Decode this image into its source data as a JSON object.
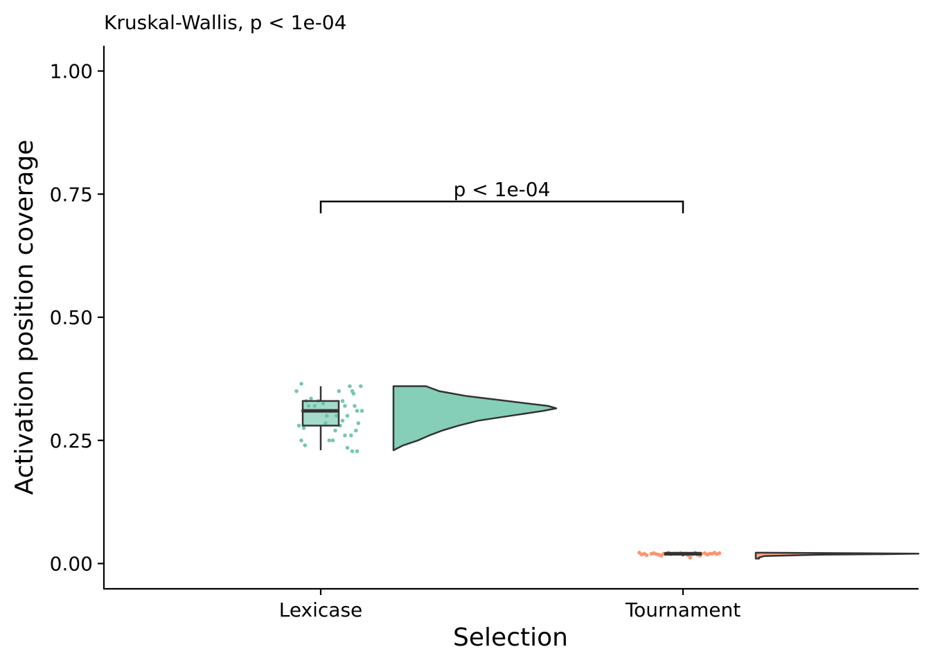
{
  "chart_data": {
    "type": "raincloud",
    "subtitle": "Kruskal-Wallis, p < 1e-04",
    "xlabel": "Selection",
    "ylabel": "Activation position coverage",
    "categories": [
      "Lexicase",
      "Tournament"
    ],
    "ylim": [
      -0.05,
      1.05
    ],
    "yticks": [
      0.0,
      0.25,
      0.5,
      0.75,
      1.0
    ],
    "ytick_labels": [
      "0.00",
      "0.25",
      "0.50",
      "0.75",
      "1.00"
    ],
    "grid": false,
    "legend": "none",
    "colors": {
      "Lexicase": "#66c2a5",
      "Tournament": "#fc8d62",
      "box_line": "#333333"
    },
    "series": [
      {
        "category": "Lexicase",
        "box": {
          "min": 0.23,
          "q1": 0.28,
          "median": 0.31,
          "q3": 0.33,
          "max": 0.36
        },
        "violin": {
          "y": [
            0.23,
            0.24,
            0.25,
            0.26,
            0.27,
            0.28,
            0.29,
            0.3,
            0.31,
            0.315,
            0.32,
            0.33,
            0.34,
            0.35,
            0.36
          ],
          "density": [
            0.0,
            0.06,
            0.15,
            0.22,
            0.3,
            0.4,
            0.52,
            0.72,
            0.92,
            1.0,
            0.95,
            0.7,
            0.45,
            0.28,
            0.2
          ]
        },
        "points": [
          {
            "x": -0.2,
            "y": 0.35
          },
          {
            "x": -0.16,
            "y": 0.365
          },
          {
            "x": -0.12,
            "y": 0.33
          },
          {
            "x": -0.08,
            "y": 0.335
          },
          {
            "x": -0.15,
            "y": 0.31
          },
          {
            "x": -0.18,
            "y": 0.28
          },
          {
            "x": -0.14,
            "y": 0.275
          },
          {
            "x": -0.16,
            "y": 0.25
          },
          {
            "x": -0.13,
            "y": 0.24
          },
          {
            "x": -0.1,
            "y": 0.32
          },
          {
            "x": -0.05,
            "y": 0.32
          },
          {
            "x": -0.02,
            "y": 0.33
          },
          {
            "x": 0.02,
            "y": 0.325
          },
          {
            "x": 0.05,
            "y": 0.3
          },
          {
            "x": 0.08,
            "y": 0.31
          },
          {
            "x": 0.1,
            "y": 0.25
          },
          {
            "x": 0.12,
            "y": 0.27
          },
          {
            "x": 0.15,
            "y": 0.35
          },
          {
            "x": 0.18,
            "y": 0.33
          },
          {
            "x": 0.2,
            "y": 0.32
          },
          {
            "x": 0.22,
            "y": 0.3
          },
          {
            "x": 0.24,
            "y": 0.36
          },
          {
            "x": 0.26,
            "y": 0.35
          },
          {
            "x": 0.28,
            "y": 0.32
          },
          {
            "x": 0.3,
            "y": 0.31
          },
          {
            "x": 0.25,
            "y": 0.26
          },
          {
            "x": 0.2,
            "y": 0.26
          },
          {
            "x": 0.22,
            "y": 0.235
          },
          {
            "x": 0.26,
            "y": 0.228
          },
          {
            "x": 0.3,
            "y": 0.228
          },
          {
            "x": 0.33,
            "y": 0.36
          },
          {
            "x": 0.34,
            "y": 0.31
          },
          {
            "x": 0.18,
            "y": 0.29
          },
          {
            "x": 0.13,
            "y": 0.3
          },
          {
            "x": 0.07,
            "y": 0.25
          },
          {
            "x": 0.27,
            "y": 0.345
          },
          {
            "x": 0.29,
            "y": 0.27
          },
          {
            "x": 0.31,
            "y": 0.285
          },
          {
            "x": 0.16,
            "y": 0.28
          },
          {
            "x": 0.04,
            "y": 0.285
          }
        ]
      },
      {
        "category": "Tournament",
        "box": {
          "min": 0.015,
          "q1": 0.018,
          "median": 0.02,
          "q3": 0.021,
          "max": 0.022
        },
        "violin": {
          "y": [
            0.01,
            0.012,
            0.015,
            0.018,
            0.019,
            0.02,
            0.021,
            0.022
          ],
          "density": [
            0.02,
            0.02,
            0.05,
            0.4,
            0.8,
            1.0,
            0.6,
            0.05
          ]
        },
        "points": [
          {
            "x": -0.36,
            "y": 0.022
          },
          {
            "x": -0.34,
            "y": 0.018
          },
          {
            "x": -0.32,
            "y": 0.02
          },
          {
            "x": -0.3,
            "y": 0.017
          },
          {
            "x": -0.26,
            "y": 0.02
          },
          {
            "x": -0.24,
            "y": 0.021
          },
          {
            "x": -0.22,
            "y": 0.019
          },
          {
            "x": -0.2,
            "y": 0.018
          },
          {
            "x": -0.16,
            "y": 0.02
          },
          {
            "x": -0.12,
            "y": 0.022
          },
          {
            "x": -0.1,
            "y": 0.019
          },
          {
            "x": -0.06,
            "y": 0.02
          },
          {
            "x": -0.02,
            "y": 0.021
          },
          {
            "x": 0.0,
            "y": 0.018
          },
          {
            "x": 0.02,
            "y": 0.02
          },
          {
            "x": 0.04,
            "y": 0.017
          },
          {
            "x": 0.06,
            "y": 0.012
          },
          {
            "x": 0.08,
            "y": 0.019
          },
          {
            "x": 0.1,
            "y": 0.022
          },
          {
            "x": 0.12,
            "y": 0.018
          },
          {
            "x": 0.15,
            "y": 0.02
          },
          {
            "x": 0.18,
            "y": 0.021
          },
          {
            "x": 0.2,
            "y": 0.018
          },
          {
            "x": 0.22,
            "y": 0.02
          },
          {
            "x": 0.24,
            "y": 0.02
          },
          {
            "x": 0.26,
            "y": 0.022
          },
          {
            "x": 0.28,
            "y": 0.019
          },
          {
            "x": 0.3,
            "y": 0.021
          },
          {
            "x": -0.18,
            "y": 0.016
          },
          {
            "x": 0.14,
            "y": 0.016
          }
        ]
      }
    ],
    "comparison": {
      "groups": [
        "Lexicase",
        "Tournament"
      ],
      "y": 0.735,
      "label": "p < 1e-04"
    }
  }
}
